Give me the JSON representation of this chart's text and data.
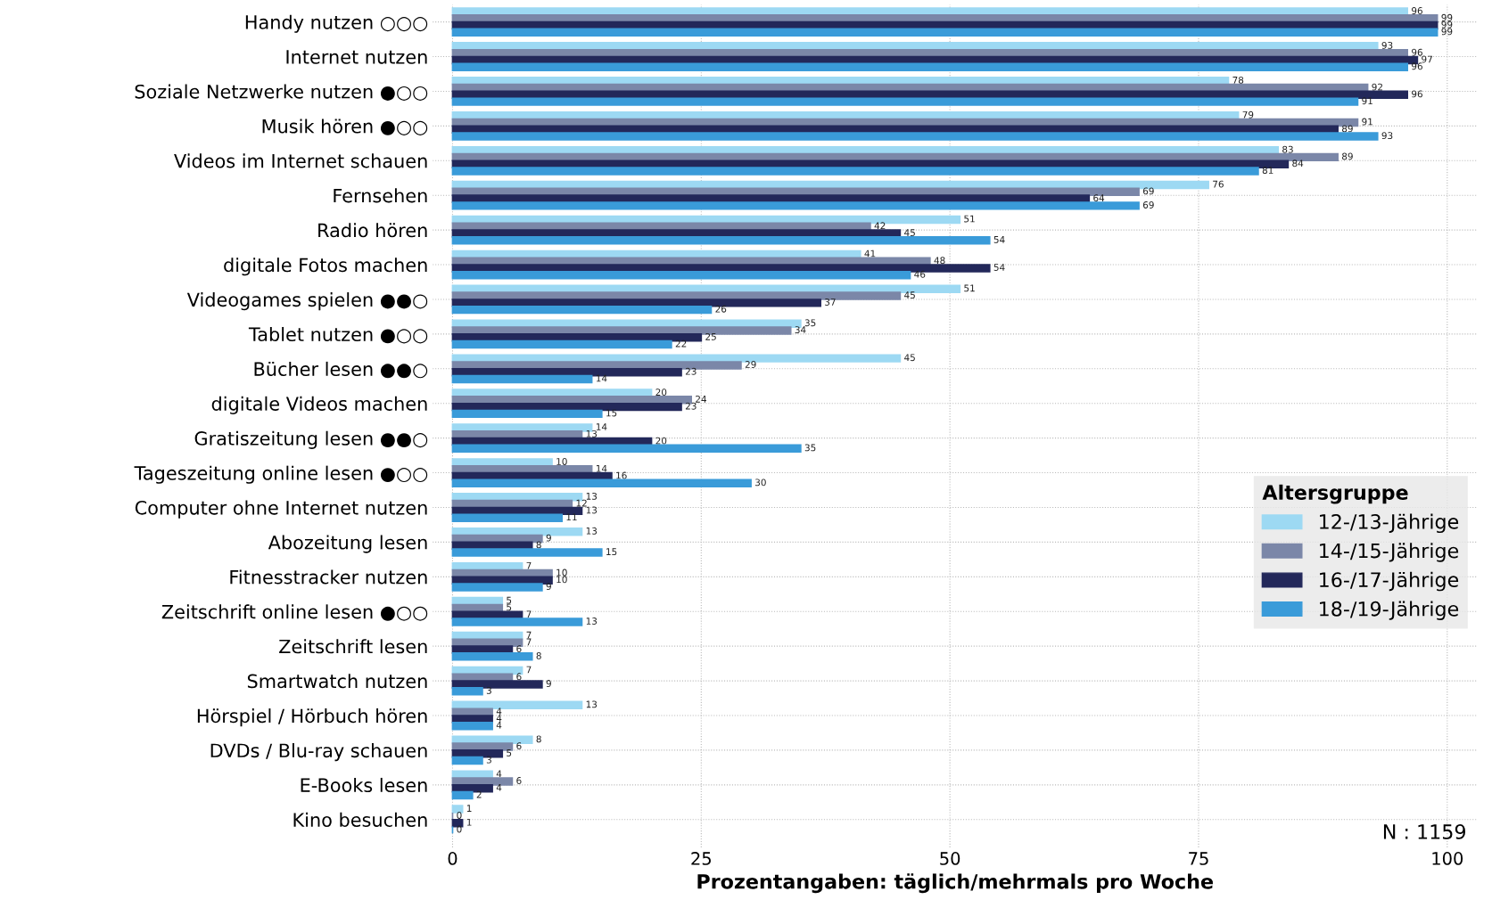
{
  "chart_data": {
    "type": "bar",
    "orientation": "horizontal",
    "categories": [
      "Handy nutzen ○○○",
      "Internet nutzen",
      "Soziale Netzwerke nutzen ●○○",
      "Musik hören ●○○",
      "Videos im Internet schauen",
      "Fernsehen",
      "Radio hören",
      "digitale Fotos machen",
      "Videogames spielen ●●○",
      "Tablet nutzen ●○○",
      "Bücher lesen ●●○",
      "digitale Videos machen",
      "Gratiszeitung lesen ●●○",
      "Tageszeitung online lesen ●○○",
      "Computer ohne Internet nutzen",
      "Abozeitung lesen",
      "Fitnesstracker nutzen",
      "Zeitschrift online lesen ●○○",
      "Zeitschrift lesen",
      "Smartwatch nutzen",
      "Hörspiel / Hörbuch hören",
      "DVDs / Blu-ray schauen",
      "E-Books lesen",
      "Kino besuchen"
    ],
    "series": [
      {
        "name": "12-/13-Jährige",
        "color": "#9dd9f3",
        "values": [
          96,
          93,
          78,
          79,
          83,
          76,
          51,
          41,
          51,
          35,
          45,
          20,
          14,
          10,
          13,
          13,
          7,
          5,
          7,
          7,
          13,
          8,
          4,
          1
        ]
      },
      {
        "name": "14-/15-Jährige",
        "color": "#7b87a8",
        "values": [
          99,
          96,
          92,
          91,
          89,
          69,
          42,
          48,
          45,
          34,
          29,
          24,
          13,
          14,
          12,
          9,
          10,
          5,
          7,
          6,
          4,
          6,
          6,
          0
        ]
      },
      {
        "name": "16-/17-Jährige",
        "color": "#23285a",
        "values": [
          99,
          97,
          96,
          89,
          84,
          64,
          45,
          54,
          37,
          25,
          23,
          23,
          20,
          16,
          13,
          8,
          10,
          7,
          6,
          9,
          4,
          5,
          4,
          1
        ]
      },
      {
        "name": "18-/19-Jährige",
        "color": "#3a9bd9",
        "values": [
          99,
          96,
          91,
          93,
          81,
          69,
          54,
          46,
          26,
          22,
          14,
          15,
          35,
          30,
          11,
          15,
          9,
          13,
          8,
          3,
          4,
          3,
          2,
          0
        ]
      }
    ],
    "xlabel": "Prozentangaben: täglich/mehrmals pro Woche",
    "legend_title": "Altersgruppe",
    "xlim": [
      -2,
      103
    ],
    "xticks": [
      0,
      25,
      50,
      75,
      100
    ],
    "annotations": [
      "N : 1159"
    ],
    "data_labels": true,
    "grid": true,
    "legend": "right"
  }
}
